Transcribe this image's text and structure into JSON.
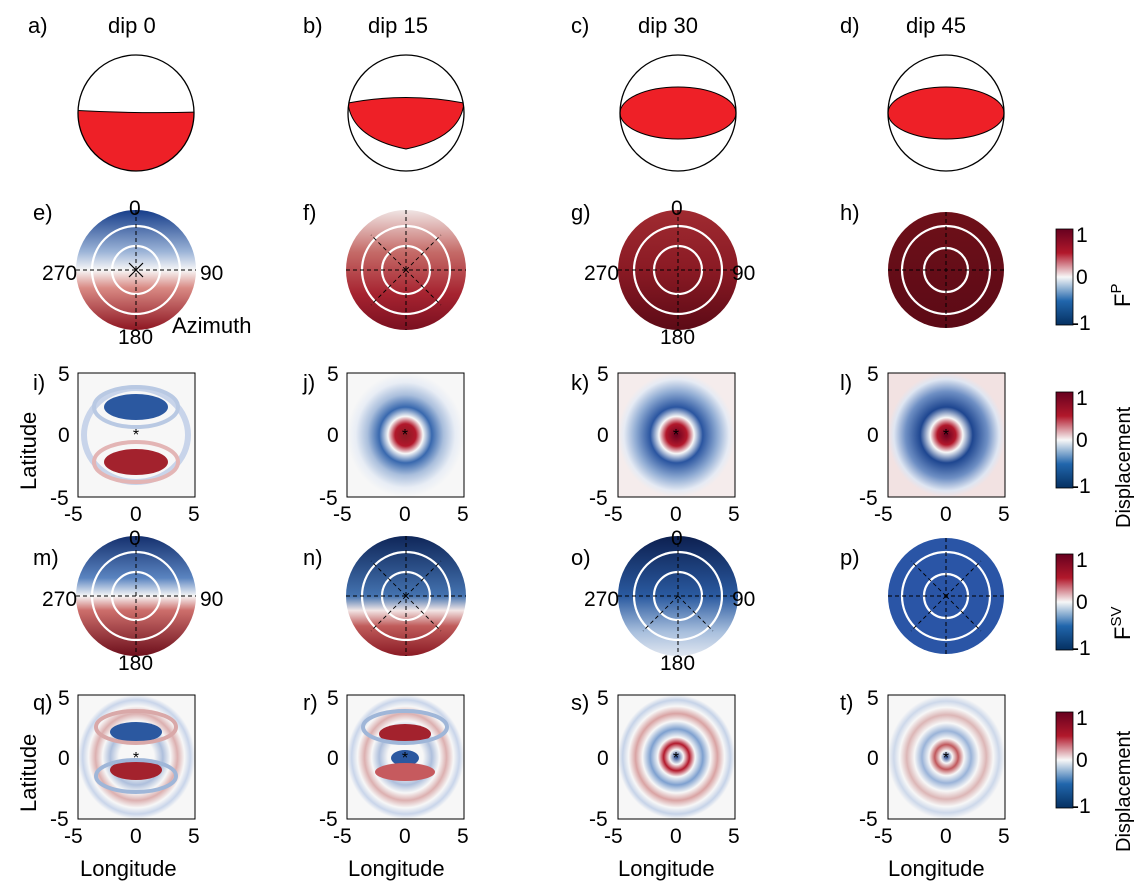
{
  "colors": {
    "beachball_fill": "#ee2027",
    "pos_max": "#67001f",
    "pos_mid": "#b2182b",
    "neutral": "#f7f7f7",
    "neg_mid": "#2166ac",
    "neg_max": "#053061",
    "marker": "#d04ad0"
  },
  "column_titles": [
    "dip 0",
    "dip 15",
    "dip 30",
    "dip 45"
  ],
  "panel_letters": [
    "a)",
    "b)",
    "c)",
    "d)",
    "e)",
    "f)",
    "g)",
    "h)",
    "i)",
    "j)",
    "k)",
    "l)",
    "m)",
    "n)",
    "o)",
    "p)",
    "q)",
    "r)",
    "s)",
    "t)"
  ],
  "azimuth_labels": {
    "north": "0",
    "east": "90",
    "south": "180",
    "west": "270",
    "caption": "Azimuth"
  },
  "colorbars": [
    {
      "label": "F",
      "superscript": "P",
      "ticks": [
        "1",
        "0",
        "-1"
      ]
    },
    {
      "label": "Displacement",
      "superscript": "",
      "ticks": [
        "1",
        "0",
        "-1"
      ]
    },
    {
      "label": "F",
      "superscript": "SV",
      "ticks": [
        "1",
        "0",
        "-1"
      ]
    },
    {
      "label": "Displacement",
      "superscript": "",
      "ticks": [
        "1",
        "0",
        "-1"
      ]
    }
  ],
  "map_axes": {
    "xlabel": "Longitude",
    "ylabel": "Latitude",
    "xticks": [
      "-5",
      "0",
      "5"
    ],
    "yticks": [
      "5",
      "0",
      "-5"
    ],
    "xlim": [
      -5,
      5
    ],
    "ylim": [
      -5,
      5
    ]
  },
  "chart_data": [
    {
      "type": "beachball",
      "rows": "a-d",
      "panels": [
        {
          "dip": 0,
          "compressional_fraction": 0.5
        },
        {
          "dip": 15,
          "compressional_fraction": 0.5
        },
        {
          "dip": 30,
          "compressional_fraction": 0.5
        },
        {
          "dip": 45,
          "compressional_fraction": 0.5
        }
      ]
    },
    {
      "type": "heatmap",
      "rows": "e-h",
      "quantity": "F^P radiation vs azimuth",
      "clim": [
        -1,
        1
      ],
      "panels": [
        {
          "dip": 0,
          "north_value": -0.8,
          "south_value": 0.8
        },
        {
          "dip": 15,
          "north_value": 0.2,
          "south_value": 0.8
        },
        {
          "dip": 30,
          "north_value": 0.7,
          "south_value": 0.95
        },
        {
          "dip": 45,
          "north_value": 1,
          "south_value": 1
        }
      ]
    },
    {
      "type": "heatmap",
      "rows": "i-l",
      "quantity": "P displacement",
      "clim": [
        -1,
        1
      ],
      "panels": [
        {
          "dip": 0,
          "center_value": 0,
          "north_lobe": -0.8,
          "south_lobe": 0.8
        },
        {
          "dip": 15,
          "center_value": 0.9,
          "ring_value": -0.6
        },
        {
          "dip": 30,
          "center_value": 1,
          "ring_value": -0.8
        },
        {
          "dip": 45,
          "center_value": 1,
          "ring_value": -0.9
        }
      ]
    },
    {
      "type": "heatmap",
      "rows": "m-p",
      "quantity": "F^SV radiation vs azimuth",
      "clim": [
        -1,
        1
      ],
      "panels": [
        {
          "dip": 0,
          "north_value": -0.85,
          "south_value": 0.85
        },
        {
          "dip": 15,
          "north_value": -0.95,
          "south_value": 0.8
        },
        {
          "dip": 30,
          "north_value": -1,
          "south_value": 0.1
        },
        {
          "dip": 45,
          "north_value": -0.75,
          "south_value": -0.75
        }
      ]
    },
    {
      "type": "heatmap",
      "rows": "q-t",
      "quantity": "SV displacement",
      "clim": [
        -1,
        1
      ],
      "panels": [
        {
          "dip": 0,
          "pattern": "two-lobe rings"
        },
        {
          "dip": 15,
          "pattern": "two-lobe rings, center blue"
        },
        {
          "dip": 30,
          "pattern": "concentric rings, center blue"
        },
        {
          "dip": 45,
          "pattern": "concentric rings, center blue"
        }
      ]
    }
  ]
}
